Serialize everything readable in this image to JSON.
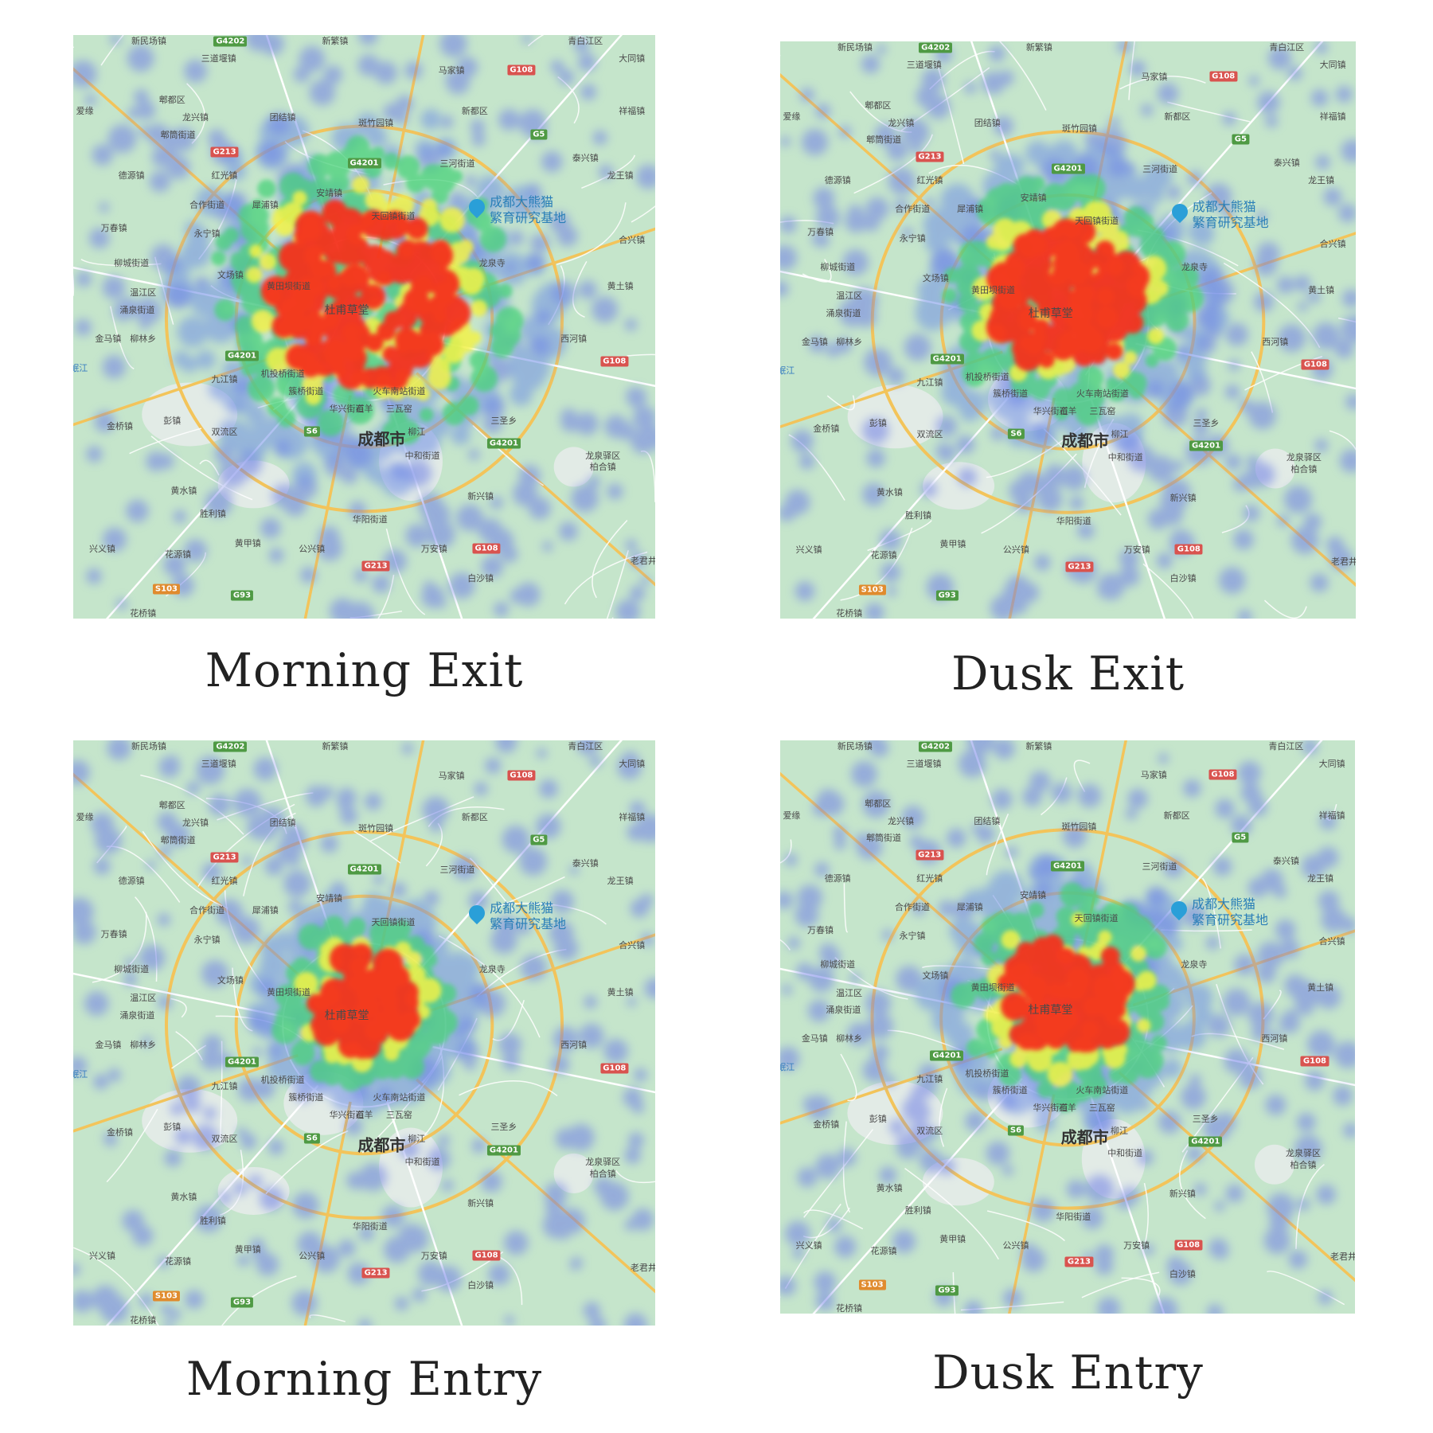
{
  "panels": [
    {
      "caption": "Morning Exit",
      "intensity": 1.0,
      "spread": 1.0
    },
    {
      "caption": "Dusk Exit",
      "intensity": 0.8,
      "spread": 0.8
    },
    {
      "caption": "Morning Entry",
      "intensity": 0.45,
      "spread": 0.55
    },
    {
      "caption": "Dusk Entry",
      "intensity": 0.55,
      "spread": 0.7
    }
  ],
  "map_labels": {
    "city": "成都市",
    "poi": "成都大熊猫繁育研究基地",
    "poi_line1": "成都大熊猫",
    "poi_line2": "繁育研究基地",
    "landmark": "杜甫草堂",
    "towns": [
      "新民场镇",
      "三道堰镇",
      "郫都区",
      "龙兴镇",
      "郫筒街道",
      "红光镇",
      "德源镇",
      "合作街道",
      "万春镇",
      "永宁镇",
      "柳城街道",
      "温江区",
      "涌泉街道",
      "金马镇",
      "柳林乡",
      "九江镇",
      "金桥镇",
      "彭镇",
      "双流区",
      "黄水镇",
      "胜利镇",
      "黄甲镇",
      "花源镇",
      "兴义镇",
      "公兴镇",
      "华阳街道",
      "万安镇",
      "白沙镇",
      "新兴镇",
      "柏合镇",
      "龙泉驿区",
      "三圣乡",
      "中和街道",
      "西河镇",
      "黄土镇",
      "合兴镇",
      "龙王镇",
      "泰兴镇",
      "祥福镇",
      "大同镇",
      "马家镇",
      "新繁镇",
      "团结镇",
      "斑竹园镇",
      "新都区",
      "三河街道",
      "天回镇街道",
      "安靖镇",
      "犀浦镇",
      "龙泉寺",
      "文场镇",
      "黄田坝街道",
      "机投桥街道",
      "簇桥街道",
      "华兴街道",
      "火车南站街道",
      "石羊",
      "三瓦窑",
      "柳江",
      "花桥镇",
      "老君井",
      "青白江区",
      "爱缘",
      "岷江"
    ],
    "highways": [
      "G4202",
      "G108",
      "G5",
      "G213",
      "G4201",
      "S6",
      "S103",
      "G93"
    ]
  }
}
